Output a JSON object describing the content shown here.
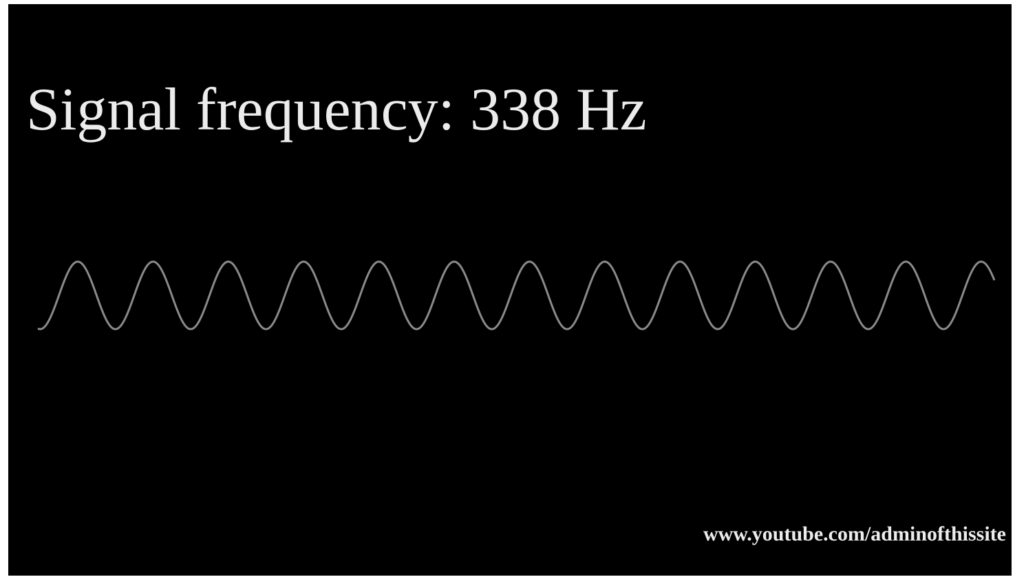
{
  "title": "Signal frequency: 338 Hz",
  "footer": "www.youtube.com/adminofthissite"
}
